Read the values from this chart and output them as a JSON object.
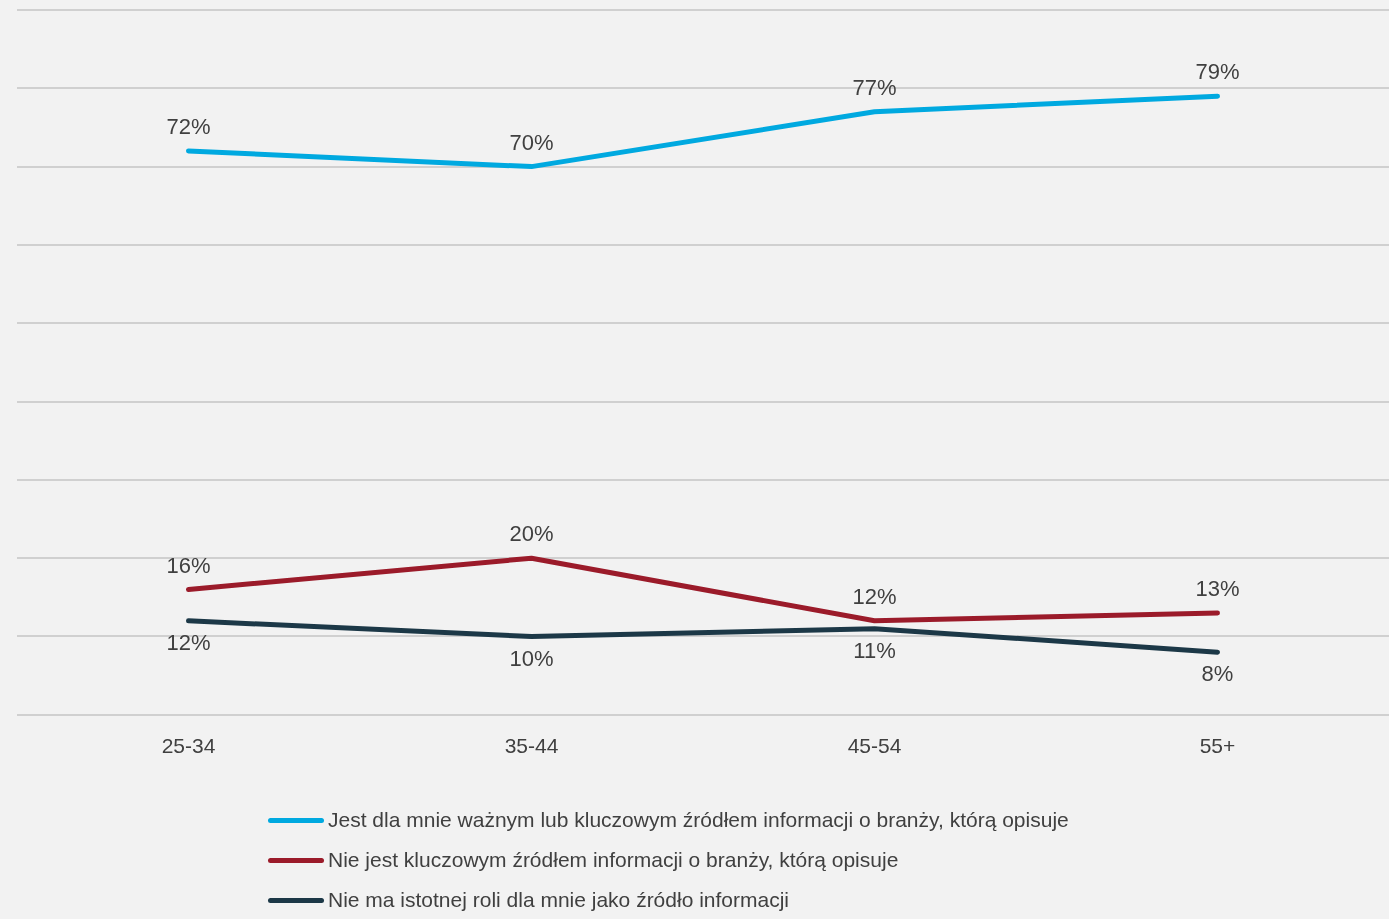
{
  "chart_data": {
    "type": "line",
    "categories": [
      "25-34",
      "35-44",
      "45-54",
      "55+"
    ],
    "series": [
      {
        "name": "Jest dla mnie ważnym lub kluczowym źródłem informacji o branży, którą opisuje",
        "color": "#00a9e0",
        "values": [
          72,
          70,
          77,
          79
        ],
        "value_labels": [
          "72%",
          "70%",
          "77%",
          "79%"
        ]
      },
      {
        "name": "Nie jest kluczowym źródłem informacji o branży, którą opisuje",
        "color": "#9b1b2a",
        "values": [
          16,
          20,
          12,
          13
        ],
        "value_labels": [
          "16%",
          "20%",
          "12%",
          "13%"
        ]
      },
      {
        "name": "Nie ma istotnej roli dla mnie jako źródło informacji",
        "color": "#1c3847",
        "values": [
          12,
          10,
          11,
          8
        ],
        "value_labels": [
          "12%",
          "10%",
          "11%",
          "8%"
        ]
      }
    ],
    "tick_labels": "x",
    "grid": "y",
    "legend": "bottom",
    "marker": "none",
    "line_style": "solid"
  }
}
